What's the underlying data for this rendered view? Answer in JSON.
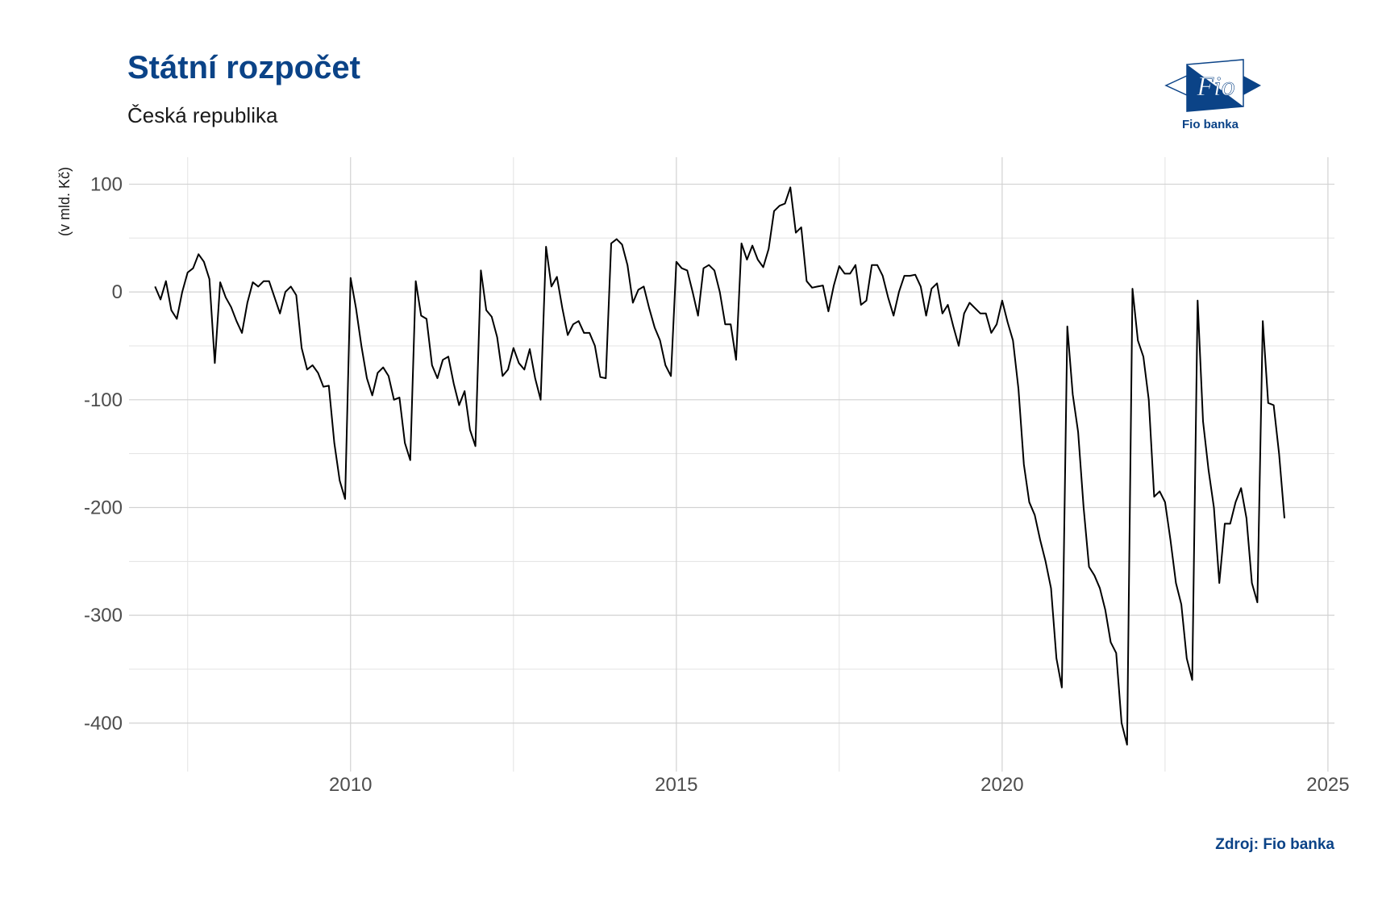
{
  "header": {
    "title": "Státní rozpočet",
    "subtitle": "Česká republika"
  },
  "logo": {
    "text": "Fio",
    "caption": "Fio banka",
    "color": "#0b4387"
  },
  "footer": {
    "source": "Zdroj: Fio banka"
  },
  "chart_data": {
    "type": "line",
    "ylabel": "(v mld. Kč)",
    "xlabel": "",
    "xlim": [
      2006.6,
      2025.1
    ],
    "ylim": [
      -445,
      125
    ],
    "x_ticks": [
      2010,
      2015,
      2020,
      2025
    ],
    "y_ticks": [
      100,
      0,
      -100,
      -200,
      -300,
      -400
    ],
    "grid": true,
    "line_color": "#000000",
    "series": [
      {
        "x_start": 2007.0,
        "x_step_months": 1,
        "values": [
          5,
          -7,
          10,
          -17,
          -25,
          0,
          18,
          22,
          35,
          28,
          12,
          -66,
          9,
          -5,
          -14,
          -27,
          -38,
          -10,
          9,
          5,
          10,
          10,
          -5,
          -20,
          0,
          5,
          -3,
          -52,
          -72,
          -68,
          -75,
          -88,
          -87,
          -140,
          -175,
          -192,
          13,
          -15,
          -50,
          -80,
          -96,
          -75,
          -70,
          -78,
          -100,
          -98,
          -140,
          -156,
          10,
          -22,
          -25,
          -68,
          -80,
          -63,
          -60,
          -85,
          -105,
          -92,
          -128,
          -143,
          20,
          -17,
          -23,
          -42,
          -78,
          -72,
          -52,
          -66,
          -72,
          -53,
          -80,
          -100,
          42,
          5,
          14,
          -15,
          -40,
          -30,
          -27,
          -38,
          -38,
          -50,
          -79,
          -80,
          45,
          49,
          44,
          25,
          -10,
          2,
          5,
          -15,
          -33,
          -45,
          -68,
          -78,
          28,
          22,
          20,
          0,
          -22,
          22,
          25,
          20,
          0,
          -30,
          -30,
          -63,
          45,
          30,
          43,
          30,
          23,
          40,
          75,
          80,
          82,
          97,
          55,
          60,
          10,
          4,
          5,
          6,
          -18,
          6,
          24,
          17,
          17,
          25,
          -12,
          -8,
          25,
          25,
          15,
          -5,
          -22,
          0,
          15,
          15,
          16,
          5,
          -22,
          3,
          8,
          -20,
          -12,
          -32,
          -50,
          -20,
          -10,
          -15,
          -20,
          -20,
          -38,
          -30,
          -8,
          -28,
          -45,
          -90,
          -160,
          -195,
          -207,
          -230,
          -250,
          -275,
          -340,
          -367,
          -32,
          -95,
          -130,
          -200,
          -255,
          -263,
          -275,
          -295,
          -325,
          -335,
          -400,
          -420,
          3,
          -45,
          -60,
          -100,
          -190,
          -185,
          -195,
          -230,
          -270,
          -290,
          -340,
          -360,
          -8,
          -120,
          -165,
          -200,
          -270,
          -215,
          -215,
          -195,
          -182,
          -210,
          -270,
          -288,
          -27,
          -103,
          -105,
          -150,
          -210
        ]
      }
    ]
  }
}
